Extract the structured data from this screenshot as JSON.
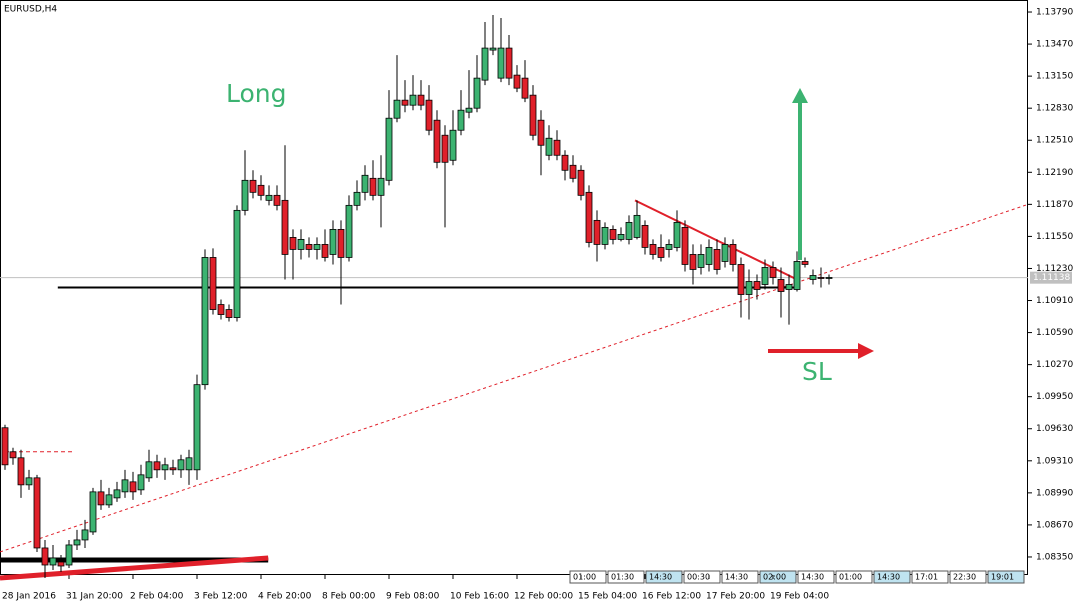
{
  "chart_data": {
    "type": "candlestick",
    "title": "EURUSD,H4",
    "up_color": "#3cb371",
    "down_color": "#e0202a",
    "ylim": [
      1.0817,
      1.1391
    ],
    "xlim": [
      -0.625,
      127.875
    ],
    "yticks": [
      {
        "value": 1.1379,
        "label": "1.13790"
      },
      {
        "value": 1.1347,
        "label": "1.13470"
      },
      {
        "value": 1.1315,
        "label": "1.13150"
      },
      {
        "value": 1.1283,
        "label": "1.12830"
      },
      {
        "value": 1.1251,
        "label": "1.12510"
      },
      {
        "value": 1.1219,
        "label": "1.12190"
      },
      {
        "value": 1.1187,
        "label": "1.11870"
      },
      {
        "value": 1.1155,
        "label": "1.11550"
      },
      {
        "value": 1.1123,
        "label": "1.11230"
      },
      {
        "value": 1.1091,
        "label": "1.10910"
      },
      {
        "value": 1.1059,
        "label": "1.10590"
      },
      {
        "value": 1.1027,
        "label": "1.10270"
      },
      {
        "value": 1.0995,
        "label": "1.09950"
      },
      {
        "value": 1.0963,
        "label": "1.09630"
      },
      {
        "value": 1.0931,
        "label": "1.09310"
      },
      {
        "value": 1.0899,
        "label": "1.08990"
      },
      {
        "value": 1.0867,
        "label": "1.08670"
      },
      {
        "value": 1.0835,
        "label": "1.08350"
      }
    ],
    "xticks": [
      {
        "value": 0,
        "label": "28 Jan 2016"
      },
      {
        "value": 8,
        "label": "31 Jan 20:00"
      },
      {
        "value": 16,
        "label": "2 Feb 04:00"
      },
      {
        "value": 24,
        "label": "3 Feb 12:00"
      },
      {
        "value": 32,
        "label": "4 Feb 20:00"
      },
      {
        "value": 40,
        "label": "8 Feb 00:00"
      },
      {
        "value": 48,
        "label": "9 Feb 08:00"
      },
      {
        "value": 56,
        "label": "10 Feb 16:00"
      },
      {
        "value": 64,
        "label": "12 Feb 00:00"
      },
      {
        "value": 72,
        "label": "15 Feb 04:00"
      },
      {
        "value": 80,
        "label": "16 Feb 12:00"
      },
      {
        "value": 88,
        "label": "17 Feb 20:00"
      },
      {
        "value": 96,
        "label": "19 Feb 04:00"
      }
    ],
    "open": [
      1.0964,
      1.094,
      1.0934,
      1.0907,
      1.0914,
      1.0844,
      1.0827,
      1.083,
      1.0827,
      1.0847,
      1.0852,
      1.086,
      1.09,
      1.0887,
      1.0894,
      1.09,
      1.091,
      1.0902,
      1.0914,
      1.093,
      1.0922,
      1.0924,
      1.0922,
      1.0922,
      1.0922,
      1.1007,
      1.1134,
      1.1087,
      1.1082,
      1.1074,
      1.1181,
      1.1211,
      1.1206,
      1.1191,
      1.1196,
      1.1191,
      1.1154,
      1.1142,
      1.1147,
      1.1142,
      1.1147,
      1.1137,
      1.1162,
      1.1134,
      1.1186,
      1.1199,
      1.1213,
      1.1196,
      1.1211,
      1.1273,
      1.1291,
      1.1286,
      1.1296,
      1.1291,
      1.1271,
      1.1256,
      1.1231,
      1.1261,
      1.1279,
      1.1283,
      1.1311,
      1.1341,
      1.1313,
      1.1343,
      1.1316,
      1.1313,
      1.1296,
      1.1271,
      1.1236,
      1.1251,
      1.1236,
      1.1226,
      1.1221,
      1.1199,
      1.1171,
      1.1147,
      1.1162,
      1.1152,
      1.1152,
      1.1154,
      1.1166,
      1.1147,
      1.1144,
      1.1142,
      1.1144,
      1.1164,
      1.1137,
      1.1124,
      1.1127,
      1.1142,
      1.113,
      1.1147,
      1.1127,
      1.1097,
      1.111,
      1.1107,
      1.1124,
      1.1112,
      1.1102,
      1.1102,
      1.113,
      1.1112,
      1.1114,
      1.1113
    ],
    "high": [
      1.0967,
      1.0944,
      1.0942,
      1.0922,
      1.0917,
      1.0852,
      1.0847,
      1.0837,
      1.0852,
      1.0862,
      1.0872,
      1.0904,
      1.0912,
      1.0904,
      1.091,
      1.0922,
      1.092,
      1.0927,
      1.0942,
      1.0937,
      1.0934,
      1.0932,
      1.0937,
      1.0942,
      1.1017,
      1.1142,
      1.1143,
      1.1092,
      1.1087,
      1.1186,
      1.1241,
      1.1221,
      1.1216,
      1.1206,
      1.1206,
      1.1246,
      1.1162,
      1.1162,
      1.1154,
      1.1154,
      1.1162,
      1.1171,
      1.1171,
      1.1196,
      1.1211,
      1.1226,
      1.1231,
      1.1236,
      1.1301,
      1.1336,
      1.1311,
      1.1316,
      1.1311,
      1.1306,
      1.1281,
      1.1266,
      1.1281,
      1.1301,
      1.1321,
      1.1336,
      1.1369,
      1.1376,
      1.1373,
      1.1356,
      1.1326,
      1.1331,
      1.1306,
      1.1281,
      1.1266,
      1.1261,
      1.1241,
      1.1236,
      1.1226,
      1.1206,
      1.1181,
      1.1169,
      1.1166,
      1.1164,
      1.1176,
      1.1191,
      1.1171,
      1.1152,
      1.1157,
      1.1152,
      1.1181,
      1.1171,
      1.1147,
      1.1147,
      1.1152,
      1.1152,
      1.1154,
      1.1152,
      1.1134,
      1.1122,
      1.1117,
      1.1132,
      1.113,
      1.1124,
      1.1117,
      1.114,
      1.1134,
      1.1122,
      1.1124,
      1.1117
    ],
    "low": [
      1.0922,
      1.0927,
      1.0894,
      1.0902,
      1.084,
      1.0814,
      1.0822,
      1.082,
      1.0824,
      1.0842,
      1.0844,
      1.0857,
      1.0882,
      1.0884,
      1.089,
      1.0894,
      1.0892,
      1.0897,
      1.091,
      1.0914,
      1.0912,
      1.0917,
      1.0914,
      1.0907,
      1.0912,
      1.1002,
      1.1077,
      1.1072,
      1.107,
      1.107,
      1.1176,
      1.1193,
      1.1191,
      1.1186,
      1.1181,
      1.1112,
      1.1112,
      1.1132,
      1.1134,
      1.1132,
      1.113,
      1.1127,
      1.1087,
      1.113,
      1.1181,
      1.1191,
      1.1191,
      1.1164,
      1.1206,
      1.1269,
      1.1279,
      1.1281,
      1.1281,
      1.1256,
      1.1223,
      1.1164,
      1.1226,
      1.1256,
      1.1273,
      1.1279,
      1.1306,
      1.1336,
      1.1309,
      1.1306,
      1.1299,
      1.1289,
      1.1251,
      1.1216,
      1.1231,
      1.1231,
      1.1211,
      1.1209,
      1.1191,
      1.1144,
      1.113,
      1.1142,
      1.1147,
      1.115,
      1.1147,
      1.1152,
      1.1137,
      1.1132,
      1.113,
      1.1134,
      1.114,
      1.112,
      1.1107,
      1.1117,
      1.112,
      1.1117,
      1.1124,
      1.112,
      1.1074,
      1.1072,
      1.1092,
      1.1102,
      1.1107,
      1.1074,
      1.1067,
      1.11,
      1.1124,
      1.1107,
      1.1104,
      1.1107
    ],
    "close": [
      1.0927,
      1.0934,
      1.0907,
      1.0914,
      1.0844,
      1.0827,
      1.0834,
      1.0826,
      1.0847,
      1.0852,
      1.0862,
      1.09,
      1.0887,
      1.0897,
      1.0902,
      1.0912,
      1.09,
      1.0917,
      1.093,
      1.0922,
      1.0927,
      1.0922,
      1.0932,
      1.0934,
      1.1007,
      1.1134,
      1.1082,
      1.1077,
      1.1074,
      1.1181,
      1.1211,
      1.1199,
      1.1196,
      1.1196,
      1.1186,
      1.1137,
      1.1142,
      1.1152,
      1.1142,
      1.1147,
      1.1134,
      1.1162,
      1.1134,
      1.1186,
      1.1199,
      1.1216,
      1.1196,
      1.1213,
      1.1273,
      1.1291,
      1.1286,
      1.1296,
      1.1286,
      1.1261,
      1.1229,
      1.1229,
      1.1261,
      1.1281,
      1.1283,
      1.1313,
      1.1343,
      1.1343,
      1.1343,
      1.1313,
      1.1303,
      1.1293,
      1.1256,
      1.1246,
      1.1253,
      1.1236,
      1.1221,
      1.1213,
      1.1196,
      1.1149,
      1.1147,
      1.1164,
      1.1152,
      1.1157,
      1.1169,
      1.1176,
      1.1144,
      1.1137,
      1.1134,
      1.1147,
      1.1169,
      1.1127,
      1.1122,
      1.1137,
      1.1144,
      1.1122,
      1.1147,
      1.1127,
      1.1097,
      1.111,
      1.1102,
      1.1124,
      1.1114,
      1.11,
      1.1107,
      1.113,
      1.1127,
      1.1116,
      1.1113,
      1.1114
    ],
    "current_price": 1.11138,
    "lines": [
      {
        "style": "dotted",
        "color": "#e0202a",
        "x": [
          -0.625,
          127.875
        ],
        "y": [
          1.084,
          1.1187
        ]
      },
      {
        "style": "solid",
        "color": "#000000",
        "x": [
          6.6,
          99
        ],
        "y": [
          1.1104,
          1.1104
        ]
      },
      {
        "style": "solid",
        "color": "#e0202a",
        "x": [
          78.75,
          99
        ],
        "y": [
          1.1191,
          1.1112
        ]
      },
      {
        "style": "thick",
        "color": "#000000",
        "x": [
          -0.625,
          32.9
        ],
        "y": [
          1.0832,
          1.0832
        ]
      },
      {
        "style": "thick",
        "color": "#e0202a",
        "x": [
          -0.625,
          32.9
        ],
        "y": [
          1.0814,
          1.0834
        ]
      },
      {
        "style": "dashed",
        "color": "#e0202a",
        "x": [
          0,
          8.75
        ],
        "y": [
          1.094,
          1.094
        ]
      }
    ],
    "annotations": [
      "Long",
      "SL"
    ],
    "scrollbar_tabs": [
      "01:00",
      "01:30",
      "14:30",
      "00:30",
      "14:30",
      "02:00",
      "14:30",
      "01:00",
      "14:30",
      "17:01",
      "22:30",
      "19:01"
    ]
  }
}
